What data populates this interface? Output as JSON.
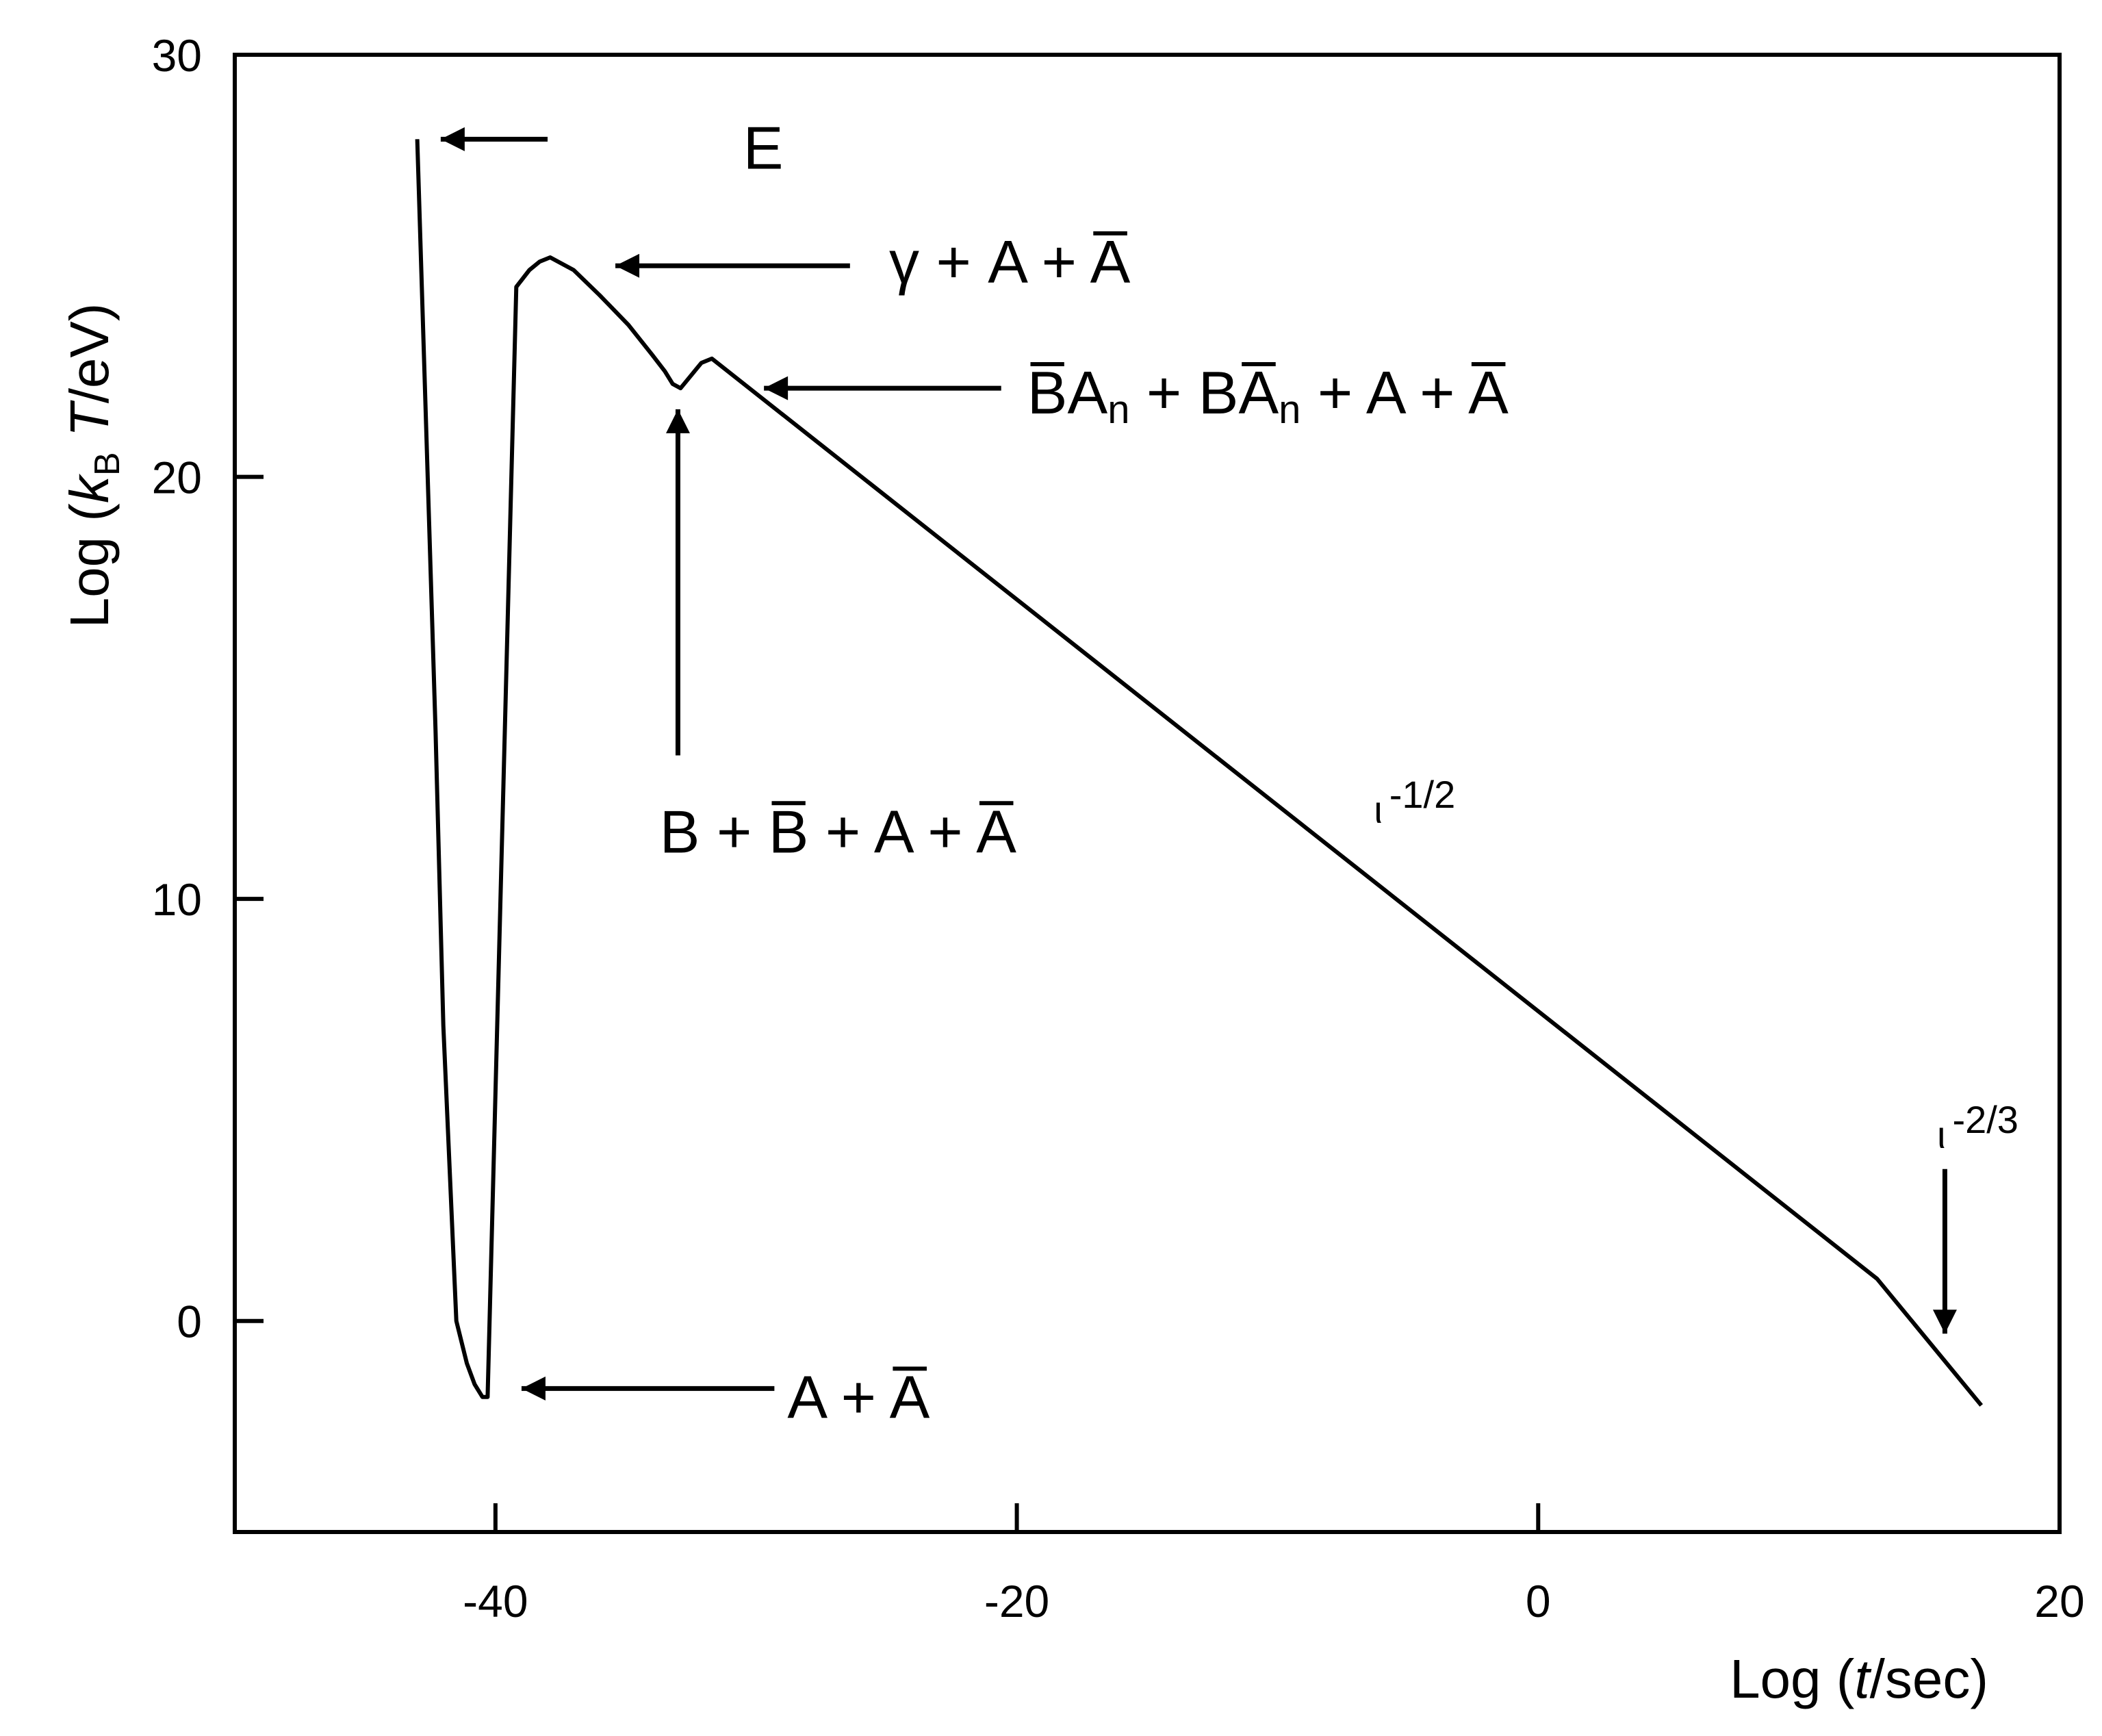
{
  "chart_data": {
    "type": "line",
    "title": "",
    "xlabel_parts": {
      "prefix": "Log (",
      "italic": "t",
      "suffix": "/sec)"
    },
    "ylabel_parts": {
      "prefix": "Log (",
      "italic": "k",
      "sub": "B",
      "italic2": " T",
      "suffix": "/eV)"
    },
    "xlim": [
      -50,
      20
    ],
    "ylim": [
      -5,
      30
    ],
    "x_ticks": [
      -40,
      -20,
      0,
      20
    ],
    "x_tick_labels": [
      "-40",
      "-20",
      "0",
      "20"
    ],
    "y_ticks": [
      0,
      10,
      20,
      30
    ],
    "y_tick_labels": [
      "0",
      "10",
      "20",
      "30"
    ],
    "grid": false,
    "series": [
      {
        "x": [
          -43,
          -42.3,
          -42,
          -41.5,
          -41.1,
          -40.8,
          -40.5,
          -40.3,
          -39.2,
          -38.7,
          -38.3,
          -37.9,
          -37,
          -36,
          -34.9,
          -34,
          -33.5,
          -33.2,
          -32.9,
          -32.5,
          -32.1,
          -31.7,
          13,
          17
        ],
        "y": [
          28,
          14,
          7,
          0,
          -1,
          -1.5,
          -1.8,
          -1.8,
          24.5,
          24.9,
          25.1,
          25.2,
          24.9,
          24.3,
          23.6,
          22.9,
          22.5,
          22.2,
          22.1,
          22.4,
          22.7,
          22.8,
          1.0,
          -2.0
        ]
      }
    ],
    "annotations": [
      {
        "id": "E",
        "text": "E",
        "tail": [
          -38,
          28
        ],
        "head": [
          -42.1,
          28
        ],
        "label_at": [
          -30.5,
          27.3
        ]
      },
      {
        "id": "gamma",
        "parts": [
          "γ + A + ",
          "A"
        ],
        "tail": [
          -26.4,
          25
        ],
        "head": [
          -35.4,
          25
        ],
        "label_at": [
          -24.9,
          24.6
        ]
      },
      {
        "id": "ban",
        "parts": [
          "B",
          "A",
          "n",
          " + B",
          "A",
          "n",
          " + A + ",
          "A"
        ],
        "tail": [
          -20.6,
          22.1
        ],
        "head": [
          -29.7,
          22.1
        ],
        "label_at": [
          -19.6,
          21.5
        ]
      },
      {
        "id": "bbar",
        "parts": [
          "B + ",
          "B",
          " + A + ",
          "A"
        ],
        "tail": [
          -33,
          13.4
        ],
        "head": [
          -33,
          21.6
        ],
        "label_at": [
          -33.7,
          11.1
        ]
      },
      {
        "id": "abar",
        "parts": [
          "A + ",
          "A"
        ],
        "tail": [
          -29.3,
          -1.6
        ],
        "head": [
          -39,
          -1.6
        ],
        "label_at": [
          -28.8,
          -2.3
        ]
      },
      {
        "id": "slope1",
        "text": "-1/2",
        "marker": "ι",
        "label_at": [
          -6.3,
          11.8
        ]
      },
      {
        "id": "slope2",
        "text": "-2/3",
        "marker": "ι",
        "label_at": [
          15.3,
          4.1
        ]
      },
      {
        "id": "down",
        "tail": [
          15.6,
          3.6
        ],
        "head": [
          15.6,
          -0.3
        ]
      }
    ]
  }
}
